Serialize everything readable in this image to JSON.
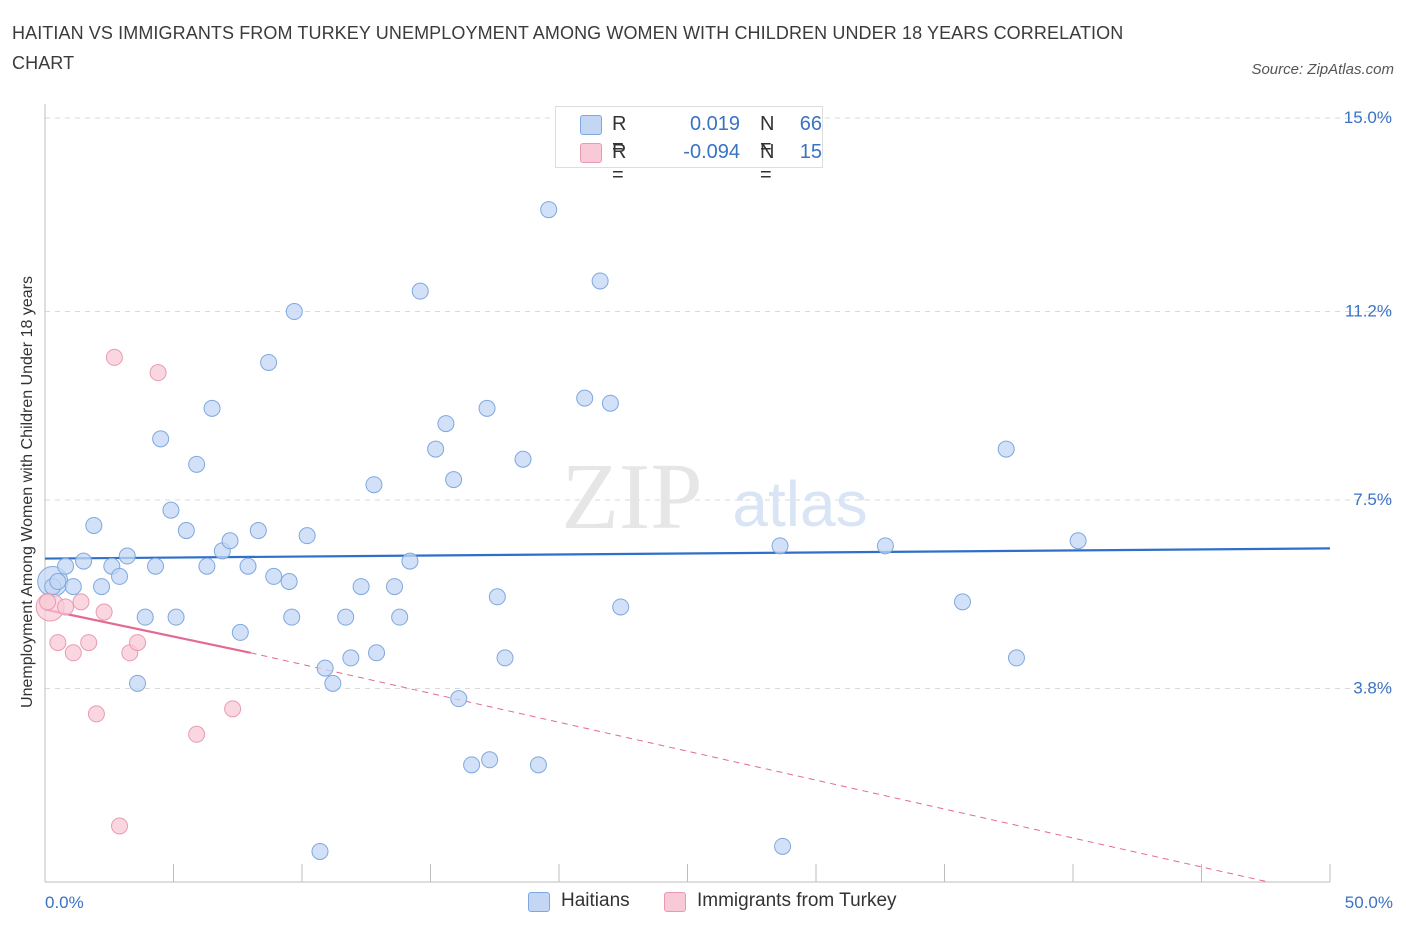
{
  "title": "HAITIAN VS IMMIGRANTS FROM TURKEY UNEMPLOYMENT AMONG WOMEN WITH CHILDREN UNDER 18 YEARS CORRELATION CHART",
  "source": "Source: ZipAtlas.com",
  "colors": {
    "haitians_fill": "#c3d7f4",
    "haitians_stroke": "#7ea8df",
    "haitians_line": "#2f6fc9",
    "turkey_fill": "#f8c9d6",
    "turkey_stroke": "#e99ab2",
    "turkey_line": "#e56a92",
    "axis_value": "#3a72c4",
    "grid": "#d9d9d9"
  },
  "watermark": {
    "zip": "ZIP",
    "atlas": "atlas"
  },
  "legend": {
    "rows": [
      {
        "r_label": "R =",
        "r_value": "0.019",
        "n_label": "N =",
        "n_value": "66"
      },
      {
        "r_label": "R =",
        "r_value": "-0.094",
        "n_label": "N =",
        "n_value": "15"
      }
    ]
  },
  "bottom_legend": [
    "Haitians",
    "Immigrants from Turkey"
  ],
  "chart_data": {
    "type": "scatter",
    "title": "HAITIAN VS IMMIGRANTS FROM TURKEY UNEMPLOYMENT AMONG WOMEN WITH CHILDREN UNDER 18 YEARS CORRELATION CHART",
    "xlabel": "",
    "ylabel": "Unemployment Among Women with Children Under 18 years",
    "xlim": [
      0,
      50
    ],
    "ylim": [
      0,
      15
    ],
    "x_tick_labels": [
      "0.0%",
      "50.0%"
    ],
    "y_ticks": [
      3.8,
      7.5,
      11.2,
      15.0
    ],
    "y_tick_labels": [
      "3.8%",
      "7.5%",
      "11.2%",
      "15.0%"
    ],
    "grid": true,
    "legend_position": "top-center",
    "series": [
      {
        "name": "Haitians",
        "r": 0.019,
        "n": 66,
        "trend": {
          "x": [
            0,
            50
          ],
          "y": [
            6.35,
            6.55
          ]
        },
        "points": [
          [
            0.3,
            5.8
          ],
          [
            0.5,
            5.9
          ],
          [
            0.8,
            6.2
          ],
          [
            1.1,
            5.8
          ],
          [
            1.5,
            6.3
          ],
          [
            1.9,
            7.0
          ],
          [
            2.2,
            5.8
          ],
          [
            2.6,
            6.2
          ],
          [
            2.9,
            6.0
          ],
          [
            3.2,
            6.4
          ],
          [
            3.6,
            3.9
          ],
          [
            3.9,
            5.2
          ],
          [
            4.3,
            6.2
          ],
          [
            4.5,
            8.7
          ],
          [
            4.9,
            7.3
          ],
          [
            5.1,
            5.2
          ],
          [
            5.5,
            6.9
          ],
          [
            5.9,
            8.2
          ],
          [
            6.3,
            6.2
          ],
          [
            6.5,
            9.3
          ],
          [
            6.9,
            6.5
          ],
          [
            7.2,
            6.7
          ],
          [
            7.6,
            4.9
          ],
          [
            7.9,
            6.2
          ],
          [
            8.3,
            6.9
          ],
          [
            8.7,
            10.2
          ],
          [
            8.9,
            6.0
          ],
          [
            9.5,
            5.9
          ],
          [
            9.6,
            5.2
          ],
          [
            9.7,
            11.2
          ],
          [
            10.2,
            6.8
          ],
          [
            10.9,
            4.2
          ],
          [
            11.2,
            3.9
          ],
          [
            11.7,
            5.2
          ],
          [
            11.9,
            4.4
          ],
          [
            12.3,
            5.8
          ],
          [
            12.8,
            7.8
          ],
          [
            12.9,
            4.5
          ],
          [
            13.6,
            5.8
          ],
          [
            13.8,
            5.2
          ],
          [
            14.2,
            6.3
          ],
          [
            14.6,
            11.6
          ],
          [
            15.2,
            8.5
          ],
          [
            15.6,
            9.0
          ],
          [
            15.9,
            7.9
          ],
          [
            16.1,
            3.6
          ],
          [
            16.6,
            2.3
          ],
          [
            17.2,
            9.3
          ],
          [
            17.3,
            2.4
          ],
          [
            17.6,
            5.6
          ],
          [
            17.9,
            4.4
          ],
          [
            18.6,
            8.3
          ],
          [
            19.2,
            2.3
          ],
          [
            19.6,
            13.2
          ],
          [
            21.0,
            9.5
          ],
          [
            21.6,
            11.8
          ],
          [
            22.0,
            9.4
          ],
          [
            22.4,
            5.4
          ],
          [
            28.6,
            6.6
          ],
          [
            28.7,
            0.7
          ],
          [
            32.7,
            6.6
          ],
          [
            35.7,
            5.5
          ],
          [
            37.4,
            8.5
          ],
          [
            37.8,
            4.4
          ],
          [
            40.2,
            6.7
          ],
          [
            10.7,
            0.6
          ]
        ]
      },
      {
        "name": "Immigrants from Turkey",
        "r": -0.094,
        "n": 15,
        "trend_solid": {
          "x": [
            0,
            8.0
          ],
          "y": [
            5.35,
            4.5
          ]
        },
        "trend_dashed": {
          "x": [
            8.0,
            47.6
          ],
          "y": [
            4.5,
            0.0
          ]
        },
        "points": [
          [
            0.1,
            5.5
          ],
          [
            0.5,
            4.7
          ],
          [
            0.8,
            5.4
          ],
          [
            1.1,
            4.5
          ],
          [
            1.4,
            5.5
          ],
          [
            1.7,
            4.7
          ],
          [
            2.0,
            3.3
          ],
          [
            2.3,
            5.3
          ],
          [
            2.7,
            10.3
          ],
          [
            2.9,
            1.1
          ],
          [
            3.3,
            4.5
          ],
          [
            3.6,
            4.7
          ],
          [
            4.4,
            10.0
          ],
          [
            5.9,
            2.9
          ],
          [
            7.3,
            3.4
          ]
        ]
      }
    ]
  }
}
